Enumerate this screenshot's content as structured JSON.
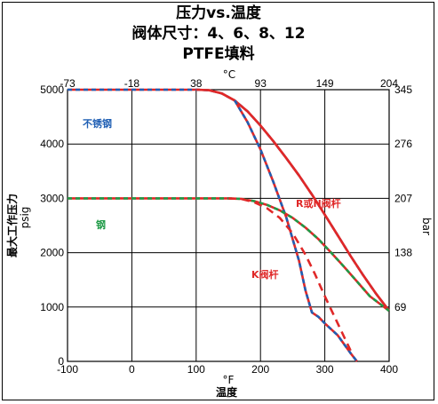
{
  "chart_data": {
    "type": "line",
    "title_lines": [
      "压力vs.温度",
      "阀体尺寸：4、6、8、12",
      "PTFE填料"
    ],
    "x_bottom": {
      "label": "温度",
      "unit": "°F",
      "range": [
        -100,
        400
      ],
      "ticks": [
        -100,
        0,
        100,
        200,
        300,
        400
      ]
    },
    "x_top": {
      "unit": "°C",
      "tick_labels": [
        "-73",
        "-18",
        "38",
        "93",
        "149",
        "204"
      ]
    },
    "y_left": {
      "label": "最大工作压力",
      "unit": "psig",
      "range": [
        0,
        5000
      ],
      "ticks": [
        0,
        1000,
        2000,
        3000,
        4000,
        5000
      ]
    },
    "y_right": {
      "unit": "bar",
      "tick_labels": [
        "69",
        "138",
        "207",
        "276",
        "345"
      ]
    },
    "grid": true,
    "series": [
      {
        "name": "不锈钢",
        "style": "dashed-red-blue",
        "color": "#1f5fb4",
        "color2": "#e02828",
        "x": [
          -100,
          100,
          120,
          140,
          160,
          180,
          200,
          220,
          240,
          260,
          280,
          300,
          320,
          340,
          360,
          380,
          400
        ],
        "y": [
          5000,
          5000,
          4990,
          4930,
          4800,
          4600,
          4340,
          4050,
          3740,
          3420,
          3070,
          2700,
          2320,
          1940,
          1580,
          1240,
          930
        ]
      },
      {
        "name": "R或N阀杆",
        "style": "solid-red",
        "color": "#e02828",
        "x": [
          100,
          120,
          140,
          160,
          180,
          200,
          220,
          240,
          260,
          280,
          300,
          320,
          340,
          360,
          380,
          400
        ],
        "y": [
          5000,
          4990,
          4930,
          4800,
          4600,
          4340,
          4050,
          3740,
          3420,
          3070,
          2700,
          2320,
          1940,
          1580,
          1240,
          930
        ]
      },
      {
        "name": "K阀杆",
        "style": "dashed-red-blue",
        "color": "#1f5fb4",
        "color2": "#e02828",
        "x": [
          160,
          180,
          200,
          220,
          240,
          260,
          270,
          280,
          290,
          300,
          320,
          340,
          350
        ],
        "y": [
          4800,
          4400,
          3900,
          3300,
          2650,
          1850,
          1300,
          900,
          820,
          700,
          480,
          150,
          0
        ]
      },
      {
        "name": "钢",
        "style": "dashed-red-green",
        "color": "#1e9a46",
        "color2": "#e02828",
        "x": [
          -100,
          150,
          170,
          190,
          210,
          230,
          250,
          270,
          290,
          310,
          330,
          350,
          370,
          400
        ],
        "y": [
          3000,
          3000,
          2990,
          2950,
          2880,
          2780,
          2640,
          2460,
          2250,
          2000,
          1740,
          1470,
          1200,
          930
        ]
      },
      {
        "name": "钢 K阀杆",
        "style": "dashed-red",
        "color": "#e02828",
        "x": [
          150,
          170,
          190,
          210,
          230,
          250,
          270,
          285,
          300,
          320,
          340
        ],
        "y": [
          3000,
          2990,
          2930,
          2820,
          2640,
          2360,
          1960,
          1600,
          1200,
          700,
          200
        ]
      }
    ],
    "annotations": [
      {
        "text": "不锈钢",
        "color": "#1f5fb4"
      },
      {
        "text": "钢",
        "color": "#1e9a46"
      },
      {
        "text": "R或N阀杆",
        "color": "#e02828"
      },
      {
        "text": "K阀杆",
        "color": "#e02828"
      }
    ]
  }
}
